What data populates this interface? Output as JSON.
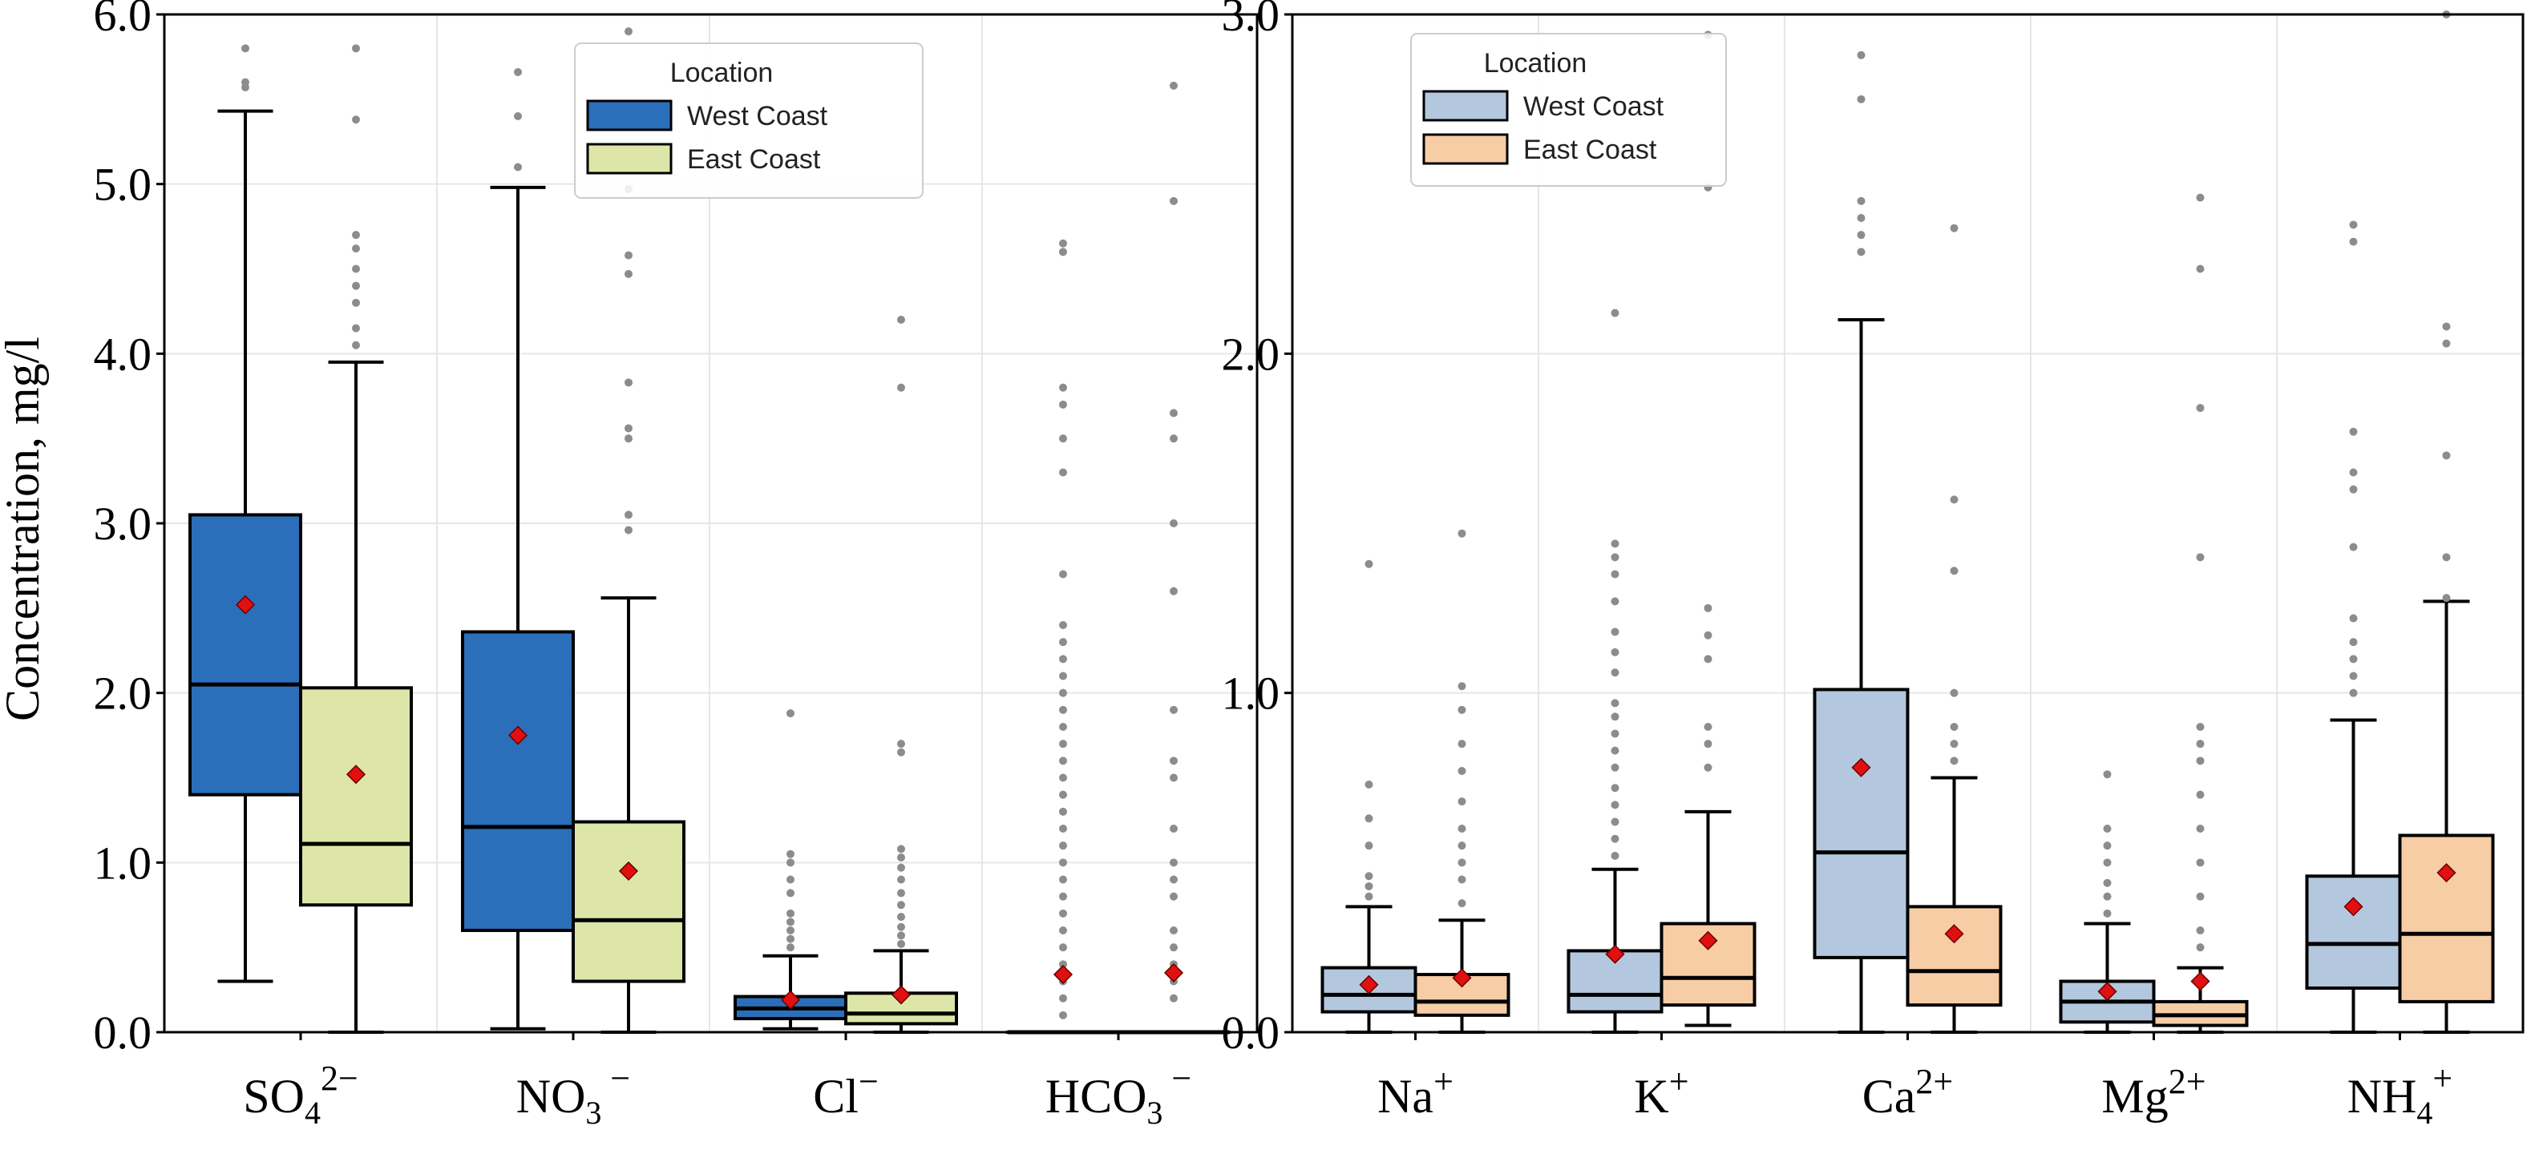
{
  "figure": {
    "ylabel": "Concentration, mg/l"
  },
  "chart_data": [
    {
      "type": "box",
      "ylabel": "Concentration, mg/l",
      "ylim": [
        0,
        6
      ],
      "ytick_labels": [
        "0.0",
        "1.0",
        "2.0",
        "3.0",
        "4.0",
        "5.0",
        "6.0"
      ],
      "legend": {
        "title": "Location",
        "placement": "top-center",
        "entries": [
          {
            "label": "West Coast",
            "color": "#2b6fba"
          },
          {
            "label": "East Coast",
            "color": "#dde6a8"
          }
        ]
      },
      "categories": [
        {
          "base": "SO",
          "sub": "4",
          "sup": "2−"
        },
        {
          "base": "NO",
          "sub": "3",
          "sup": " −"
        },
        {
          "base": "Cl",
          "sub": "",
          "sup": "−"
        },
        {
          "base": "HCO",
          "sub": "3",
          "sup": " −"
        }
      ],
      "series": [
        {
          "name": "West Coast",
          "color": "#2b6fba",
          "boxes": [
            {
              "whislo": 0.3,
              "q1": 1.4,
              "med": 2.05,
              "q3": 3.05,
              "whishi": 5.43,
              "mean": 2.52,
              "fliers": [
                5.57,
                5.6,
                5.8
              ]
            },
            {
              "whislo": 0.02,
              "q1": 0.6,
              "med": 1.21,
              "q3": 2.36,
              "whishi": 4.98,
              "mean": 1.75,
              "fliers": [
                5.1,
                5.4,
                5.66
              ]
            },
            {
              "whislo": 0.02,
              "q1": 0.08,
              "med": 0.14,
              "q3": 0.21,
              "whishi": 0.45,
              "mean": 0.19,
              "fliers": [
                0.5,
                0.55,
                0.6,
                0.65,
                0.7,
                0.82,
                0.9,
                1.0,
                1.05,
                1.88
              ]
            },
            {
              "whislo": 0.0,
              "q1": 0.0,
              "med": 0.0,
              "q3": 0.0,
              "whishi": 0.0,
              "mean": 0.34,
              "fliers": [
                0.1,
                0.2,
                0.3,
                0.4,
                0.5,
                0.6,
                0.7,
                0.8,
                0.9,
                1.0,
                1.1,
                1.2,
                1.3,
                1.4,
                1.5,
                1.6,
                1.7,
                1.8,
                1.9,
                2.0,
                2.1,
                2.2,
                2.3,
                2.4,
                2.7,
                3.3,
                3.5,
                3.7,
                3.8,
                4.6,
                4.65
              ]
            }
          ]
        },
        {
          "name": "East Coast",
          "color": "#dde6a8",
          "boxes": [
            {
              "whislo": 0.0,
              "q1": 0.75,
              "med": 1.11,
              "q3": 2.03,
              "whishi": 3.95,
              "mean": 1.52,
              "fliers": [
                4.05,
                4.15,
                4.3,
                4.4,
                4.5,
                4.62,
                4.7,
                5.38,
                5.8
              ]
            },
            {
              "whislo": 0.0,
              "q1": 0.3,
              "med": 0.66,
              "q3": 1.24,
              "whishi": 2.56,
              "mean": 0.95,
              "fliers": [
                2.96,
                3.05,
                3.5,
                3.56,
                3.83,
                4.47,
                4.58,
                4.97,
                5.9
              ]
            },
            {
              "whislo": 0.0,
              "q1": 0.05,
              "med": 0.11,
              "q3": 0.23,
              "whishi": 0.48,
              "mean": 0.22,
              "fliers": [
                0.52,
                0.57,
                0.62,
                0.68,
                0.75,
                0.82,
                0.9,
                0.97,
                1.03,
                1.08,
                1.65,
                1.7,
                3.8,
                4.2
              ]
            },
            {
              "whislo": 0.0,
              "q1": 0.0,
              "med": 0.0,
              "q3": 0.0,
              "whishi": 0.0,
              "mean": 0.35,
              "fliers": [
                0.2,
                0.3,
                0.4,
                0.5,
                0.6,
                0.8,
                0.9,
                1.0,
                1.2,
                1.5,
                1.6,
                1.9,
                2.6,
                3.0,
                3.5,
                3.65,
                4.9,
                5.58
              ]
            }
          ]
        }
      ]
    },
    {
      "type": "box",
      "ylabel": "",
      "ylim": [
        0,
        3
      ],
      "ytick_labels": [
        "0.0",
        "1.0",
        "2.0",
        "3.0"
      ],
      "legend": {
        "title": "Location",
        "placement": "top-left",
        "entries": [
          {
            "label": "West Coast",
            "color": "#b3c8de"
          },
          {
            "label": "East Coast",
            "color": "#f7cda6"
          }
        ]
      },
      "categories": [
        {
          "base": "Na",
          "sub": "",
          "sup": "+"
        },
        {
          "base": "K",
          "sub": "",
          "sup": "+"
        },
        {
          "base": "Ca",
          "sub": "",
          "sup": "2+"
        },
        {
          "base": "Mg",
          "sub": "",
          "sup": "2+"
        },
        {
          "base": "NH",
          "sub": "4",
          "sup": "+"
        }
      ],
      "series": [
        {
          "name": "West Coast",
          "color": "#b3c8de",
          "boxes": [
            {
              "whislo": 0.0,
              "q1": 0.06,
              "med": 0.11,
              "q3": 0.19,
              "whishi": 0.37,
              "mean": 0.14,
              "fliers": [
                0.4,
                0.43,
                0.46,
                0.55,
                0.63,
                0.73,
                1.38
              ]
            },
            {
              "whislo": 0.0,
              "q1": 0.06,
              "med": 0.11,
              "q3": 0.24,
              "whishi": 0.48,
              "mean": 0.23,
              "fliers": [
                0.52,
                0.57,
                0.62,
                0.67,
                0.72,
                0.78,
                0.83,
                0.88,
                0.93,
                0.97,
                1.06,
                1.12,
                1.18,
                1.27,
                1.35,
                1.4,
                1.44,
                2.12
              ]
            },
            {
              "whislo": 0.0,
              "q1": 0.22,
              "med": 0.53,
              "q3": 1.01,
              "whishi": 2.1,
              "mean": 0.78,
              "fliers": [
                2.3,
                2.35,
                2.4,
                2.45,
                2.75,
                2.88
              ]
            },
            {
              "whislo": 0.0,
              "q1": 0.03,
              "med": 0.09,
              "q3": 0.15,
              "whishi": 0.32,
              "mean": 0.12,
              "fliers": [
                0.35,
                0.4,
                0.44,
                0.5,
                0.55,
                0.6,
                0.76
              ]
            },
            {
              "whislo": 0.0,
              "q1": 0.13,
              "med": 0.26,
              "q3": 0.46,
              "whishi": 0.92,
              "mean": 0.37,
              "fliers": [
                1.0,
                1.05,
                1.1,
                1.15,
                1.22,
                1.43,
                1.6,
                1.65,
                1.77,
                2.33,
                2.38
              ]
            }
          ]
        },
        {
          "name": "East Coast",
          "color": "#f7cda6",
          "boxes": [
            {
              "whislo": 0.0,
              "q1": 0.05,
              "med": 0.09,
              "q3": 0.17,
              "whishi": 0.33,
              "mean": 0.16,
              "fliers": [
                0.38,
                0.45,
                0.5,
                0.55,
                0.6,
                0.68,
                0.77,
                0.85,
                0.95,
                1.02,
                1.47
              ]
            },
            {
              "whislo": 0.02,
              "q1": 0.08,
              "med": 0.16,
              "q3": 0.32,
              "whishi": 0.65,
              "mean": 0.27,
              "fliers": [
                0.78,
                0.85,
                0.9,
                1.1,
                1.17,
                1.25,
                2.49,
                2.94
              ]
            },
            {
              "whislo": 0.0,
              "q1": 0.08,
              "med": 0.18,
              "q3": 0.37,
              "whishi": 0.75,
              "mean": 0.29,
              "fliers": [
                0.8,
                0.85,
                0.9,
                1.0,
                1.36,
                1.57,
                2.37
              ]
            },
            {
              "whislo": 0.0,
              "q1": 0.02,
              "med": 0.05,
              "q3": 0.09,
              "whishi": 0.19,
              "mean": 0.15,
              "fliers": [
                0.25,
                0.3,
                0.4,
                0.5,
                0.6,
                0.7,
                0.8,
                0.85,
                0.9,
                1.4,
                1.84,
                2.25,
                2.46
              ]
            },
            {
              "whislo": 0.0,
              "q1": 0.09,
              "med": 0.29,
              "q3": 0.58,
              "whishi": 1.27,
              "mean": 0.47,
              "fliers": [
                1.28,
                1.4,
                1.7,
                2.03,
                2.08,
                3.0
              ]
            }
          ]
        }
      ]
    }
  ]
}
